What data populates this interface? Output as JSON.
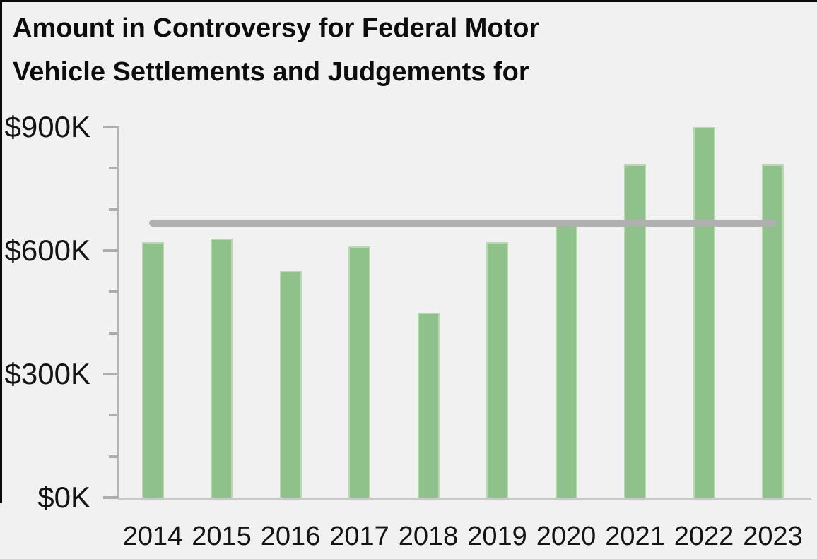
{
  "title": {
    "line1": "Amount in Controversy for Federal Motor",
    "line2": "Vehicle Settlements and Judgements for"
  },
  "chart_data": {
    "type": "bar",
    "title": "Amount in Controversy for Federal Motor Vehicle Settlements and Judgements for",
    "categories": [
      "2014",
      "2015",
      "2016",
      "2017",
      "2018",
      "2019",
      "2020",
      "2021",
      "2022",
      "2023"
    ],
    "values": [
      620,
      630,
      550,
      610,
      450,
      620,
      660,
      810,
      900,
      810
    ],
    "value_unit": "USD thousands",
    "xlabel": "",
    "ylabel": "",
    "ylim": [
      0,
      900
    ],
    "ytick_major_step": 300,
    "ytick_minor_step": 100,
    "ytick_labels": [
      "$0K",
      "$300K",
      "$600K",
      "$900K"
    ],
    "grid": false,
    "legend": null,
    "reference_line": {
      "value": 667,
      "spans": "first bar center to last bar center",
      "color": "#b0b0b0"
    },
    "colors": {
      "bar_fill": "#8fc18a",
      "bar_stroke": "#b6d9af",
      "axis": "#b3b3b3",
      "tick": "#adadad",
      "text": "#141414",
      "title_text": "#0d0d0d",
      "background": "#f1f1f1",
      "crop_border": "#0a0a0a"
    }
  }
}
